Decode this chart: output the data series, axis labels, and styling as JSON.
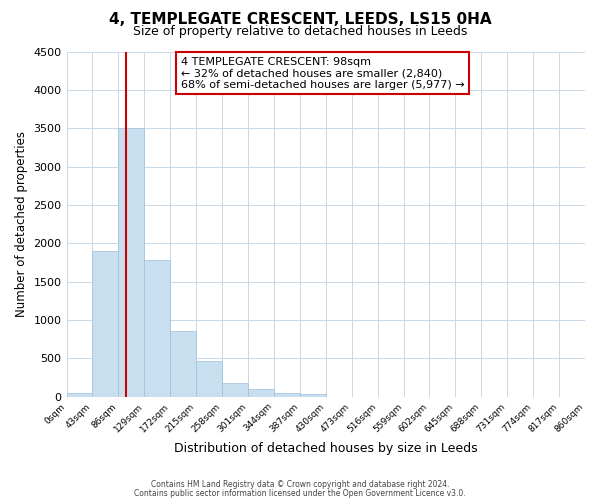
{
  "title": "4, TEMPLEGATE CRESCENT, LEEDS, LS15 0HA",
  "subtitle": "Size of property relative to detached houses in Leeds",
  "xlabel": "Distribution of detached houses by size in Leeds",
  "ylabel": "Number of detached properties",
  "bar_values": [
    50,
    1900,
    3500,
    1780,
    860,
    460,
    185,
    95,
    55,
    30,
    0,
    0,
    0,
    0,
    0,
    0,
    0,
    0,
    0,
    0
  ],
  "bar_labels": [
    "0sqm",
    "43sqm",
    "86sqm",
    "129sqm",
    "172sqm",
    "215sqm",
    "258sqm",
    "301sqm",
    "344sqm",
    "387sqm",
    "430sqm",
    "473sqm",
    "516sqm",
    "559sqm",
    "602sqm",
    "645sqm",
    "688sqm",
    "731sqm",
    "774sqm",
    "817sqm",
    "860sqm"
  ],
  "bar_color": "#c8dff0",
  "bar_edge_color": "#a0c0dc",
  "ylim": [
    0,
    4500
  ],
  "yticks": [
    0,
    500,
    1000,
    1500,
    2000,
    2500,
    3000,
    3500,
    4000,
    4500
  ],
  "vline_x": 2.28,
  "vline_color": "#cc0000",
  "annotation_title": "4 TEMPLEGATE CRESCENT: 98sqm",
  "annotation_line1": "← 32% of detached houses are smaller (2,840)",
  "annotation_line2": "68% of semi-detached houses are larger (5,977) →",
  "annotation_box_color": "#ffffff",
  "annotation_box_edge": "#cc0000",
  "footer1": "Contains HM Land Registry data © Crown copyright and database right 2024.",
  "footer2": "Contains public sector information licensed under the Open Government Licence v3.0.",
  "background_color": "#ffffff",
  "grid_color": "#c8d8e8"
}
